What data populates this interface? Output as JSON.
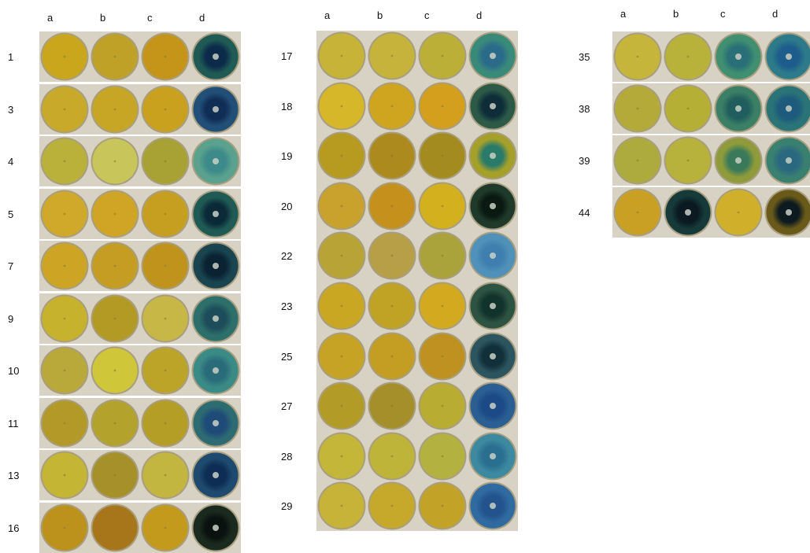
{
  "panels": [
    {
      "column_labels": [
        "a",
        "b",
        "c",
        "d"
      ],
      "rows": [
        {
          "label": "1",
          "plates": [
            {
              "color": "#c9a61b"
            },
            {
              "color": "#bea126"
            },
            {
              "color": "#c5951a"
            },
            {
              "color": "#1f5a55",
              "halo": "#0c2b4a"
            }
          ]
        },
        {
          "label": "3",
          "plates": [
            {
              "color": "#c8a92a"
            },
            {
              "color": "#c7a525"
            },
            {
              "color": "#c9a11f"
            },
            {
              "color": "#214f78",
              "halo": "#102d55"
            }
          ]
        },
        {
          "label": "4",
          "plates": [
            {
              "color": "#b9b13a"
            },
            {
              "color": "#c8c55a"
            },
            {
              "color": "#a7a233"
            },
            {
              "color": "#5aa18e",
              "halo": "#3c8a8a"
            }
          ]
        },
        {
          "label": "5",
          "plates": [
            {
              "color": "#d0a92a"
            },
            {
              "color": "#d0a526"
            },
            {
              "color": "#c79f20"
            },
            {
              "color": "#1f5a55",
              "halo": "#0b2a38"
            }
          ]
        },
        {
          "label": "7",
          "plates": [
            {
              "color": "#cda423"
            },
            {
              "color": "#c49d22"
            },
            {
              "color": "#c0941c"
            },
            {
              "color": "#194450",
              "halo": "#0a2232"
            }
          ]
        },
        {
          "label": "9",
          "plates": [
            {
              "color": "#c7b22e"
            },
            {
              "color": "#b39a25"
            },
            {
              "color": "#c7b746"
            },
            {
              "color": "#2d6f6a",
              "halo": "#1d4d5a"
            }
          ]
        },
        {
          "label": "10",
          "plates": [
            {
              "color": "#b9a83a"
            },
            {
              "color": "#cfc63a"
            },
            {
              "color": "#bca429"
            },
            {
              "color": "#3a8a85",
              "halo": "#2a6b7a"
            }
          ]
        },
        {
          "label": "11",
          "plates": [
            {
              "color": "#b39a28"
            },
            {
              "color": "#b3a22b"
            },
            {
              "color": "#b49e26"
            },
            {
              "color": "#2d6b72",
              "halo": "#1e4b78"
            }
          ]
        },
        {
          "label": "13",
          "plates": [
            {
              "color": "#c4b535"
            },
            {
              "color": "#a6902a"
            },
            {
              "color": "#c3b640"
            },
            {
              "color": "#1e4a6f",
              "halo": "#0e2d55"
            }
          ]
        },
        {
          "label": "16",
          "plates": [
            {
              "color": "#bd921c"
            },
            {
              "color": "#a8761a"
            },
            {
              "color": "#c49a1c"
            },
            {
              "color": "#1b2a1f",
              "halo": "#0a120f"
            }
          ]
        }
      ]
    },
    {
      "column_labels": [
        "a",
        "b",
        "c",
        "d"
      ],
      "rows": [
        {
          "label": "17",
          "plates": [
            {
              "color": "#c7b338"
            },
            {
              "color": "#c6b33c"
            },
            {
              "color": "#bcaf38"
            },
            {
              "color": "#3a8a7a",
              "halo": "#2b6b8a"
            }
          ]
        },
        {
          "label": "18",
          "plates": [
            {
              "color": "#d7b72a"
            },
            {
              "color": "#cfa51f"
            },
            {
              "color": "#d49f1c"
            },
            {
              "color": "#2c5a47",
              "halo": "#0e2d38"
            }
          ]
        },
        {
          "label": "19",
          "plates": [
            {
              "color": "#b79a20"
            },
            {
              "color": "#ad8a1e"
            },
            {
              "color": "#a38b20"
            },
            {
              "color": "#a5a02a",
              "halo": "#2a7a6a"
            }
          ]
        },
        {
          "label": "20",
          "plates": [
            {
              "color": "#c8a22c"
            },
            {
              "color": "#c5901c"
            },
            {
              "color": "#d2b01e"
            },
            {
              "color": "#1f3a2a",
              "halo": "#0a1a12"
            }
          ]
        },
        {
          "label": "22",
          "plates": [
            {
              "color": "#b8a436"
            },
            {
              "color": "#b79f48"
            },
            {
              "color": "#aaa33c"
            },
            {
              "color": "#4f91b8",
              "halo": "#3e7fb0"
            }
          ]
        },
        {
          "label": "23",
          "plates": [
            {
              "color": "#c9a723"
            },
            {
              "color": "#c0a225"
            },
            {
              "color": "#d3a91f"
            },
            {
              "color": "#2d5342",
              "halo": "#12322c"
            }
          ]
        },
        {
          "label": "25",
          "plates": [
            {
              "color": "#c6a324"
            },
            {
              "color": "#c39e22"
            },
            {
              "color": "#be9120"
            },
            {
              "color": "#2c5560",
              "halo": "#12303a"
            }
          ]
        },
        {
          "label": "27",
          "plates": [
            {
              "color": "#b29b27"
            },
            {
              "color": "#a58f2a"
            },
            {
              "color": "#b8ad32"
            },
            {
              "color": "#2b5e92",
              "halo": "#1b4a86"
            }
          ]
        },
        {
          "label": "28",
          "plates": [
            {
              "color": "#c3b638"
            },
            {
              "color": "#bfb43a"
            },
            {
              "color": "#b3b240"
            },
            {
              "color": "#3d89a0",
              "halo": "#2a6f90"
            }
          ]
        },
        {
          "label": "29",
          "plates": [
            {
              "color": "#c7b337"
            },
            {
              "color": "#c6a92a"
            },
            {
              "color": "#c2a227"
            },
            {
              "color": "#2f6aa0",
              "halo": "#22538c"
            }
          ]
        }
      ]
    },
    {
      "column_labels": [
        "a",
        "b",
        "c",
        "d"
      ],
      "rows": [
        {
          "label": "35",
          "plates": [
            {
              "color": "#c5b53a"
            },
            {
              "color": "#b9b23a"
            },
            {
              "color": "#3f8f70",
              "halo": "#2a6e78"
            },
            {
              "color": "#2c7a8a",
              "halo": "#1e5c8c"
            }
          ]
        },
        {
          "label": "38",
          "plates": [
            {
              "color": "#b3aa3a"
            },
            {
              "color": "#b5b035"
            },
            {
              "color": "#3a7f66",
              "halo": "#1f5e5c"
            },
            {
              "color": "#2a7478",
              "halo": "#1d5a7c"
            }
          ]
        },
        {
          "label": "39",
          "plates": [
            {
              "color": "#adab3d"
            },
            {
              "color": "#b6b23b"
            },
            {
              "color": "#8f9b3a",
              "halo": "#3a7a5a"
            },
            {
              "color": "#3a8070",
              "halo": "#2a6880"
            }
          ]
        },
        {
          "label": "44",
          "plates": [
            {
              "color": "#c9a024"
            },
            {
              "color": "#163a3a",
              "halo": "#0a1a20"
            },
            {
              "color": "#d0b02b"
            },
            {
              "color": "#6a5a1a",
              "halo": "#0d1a20"
            }
          ]
        }
      ]
    }
  ]
}
